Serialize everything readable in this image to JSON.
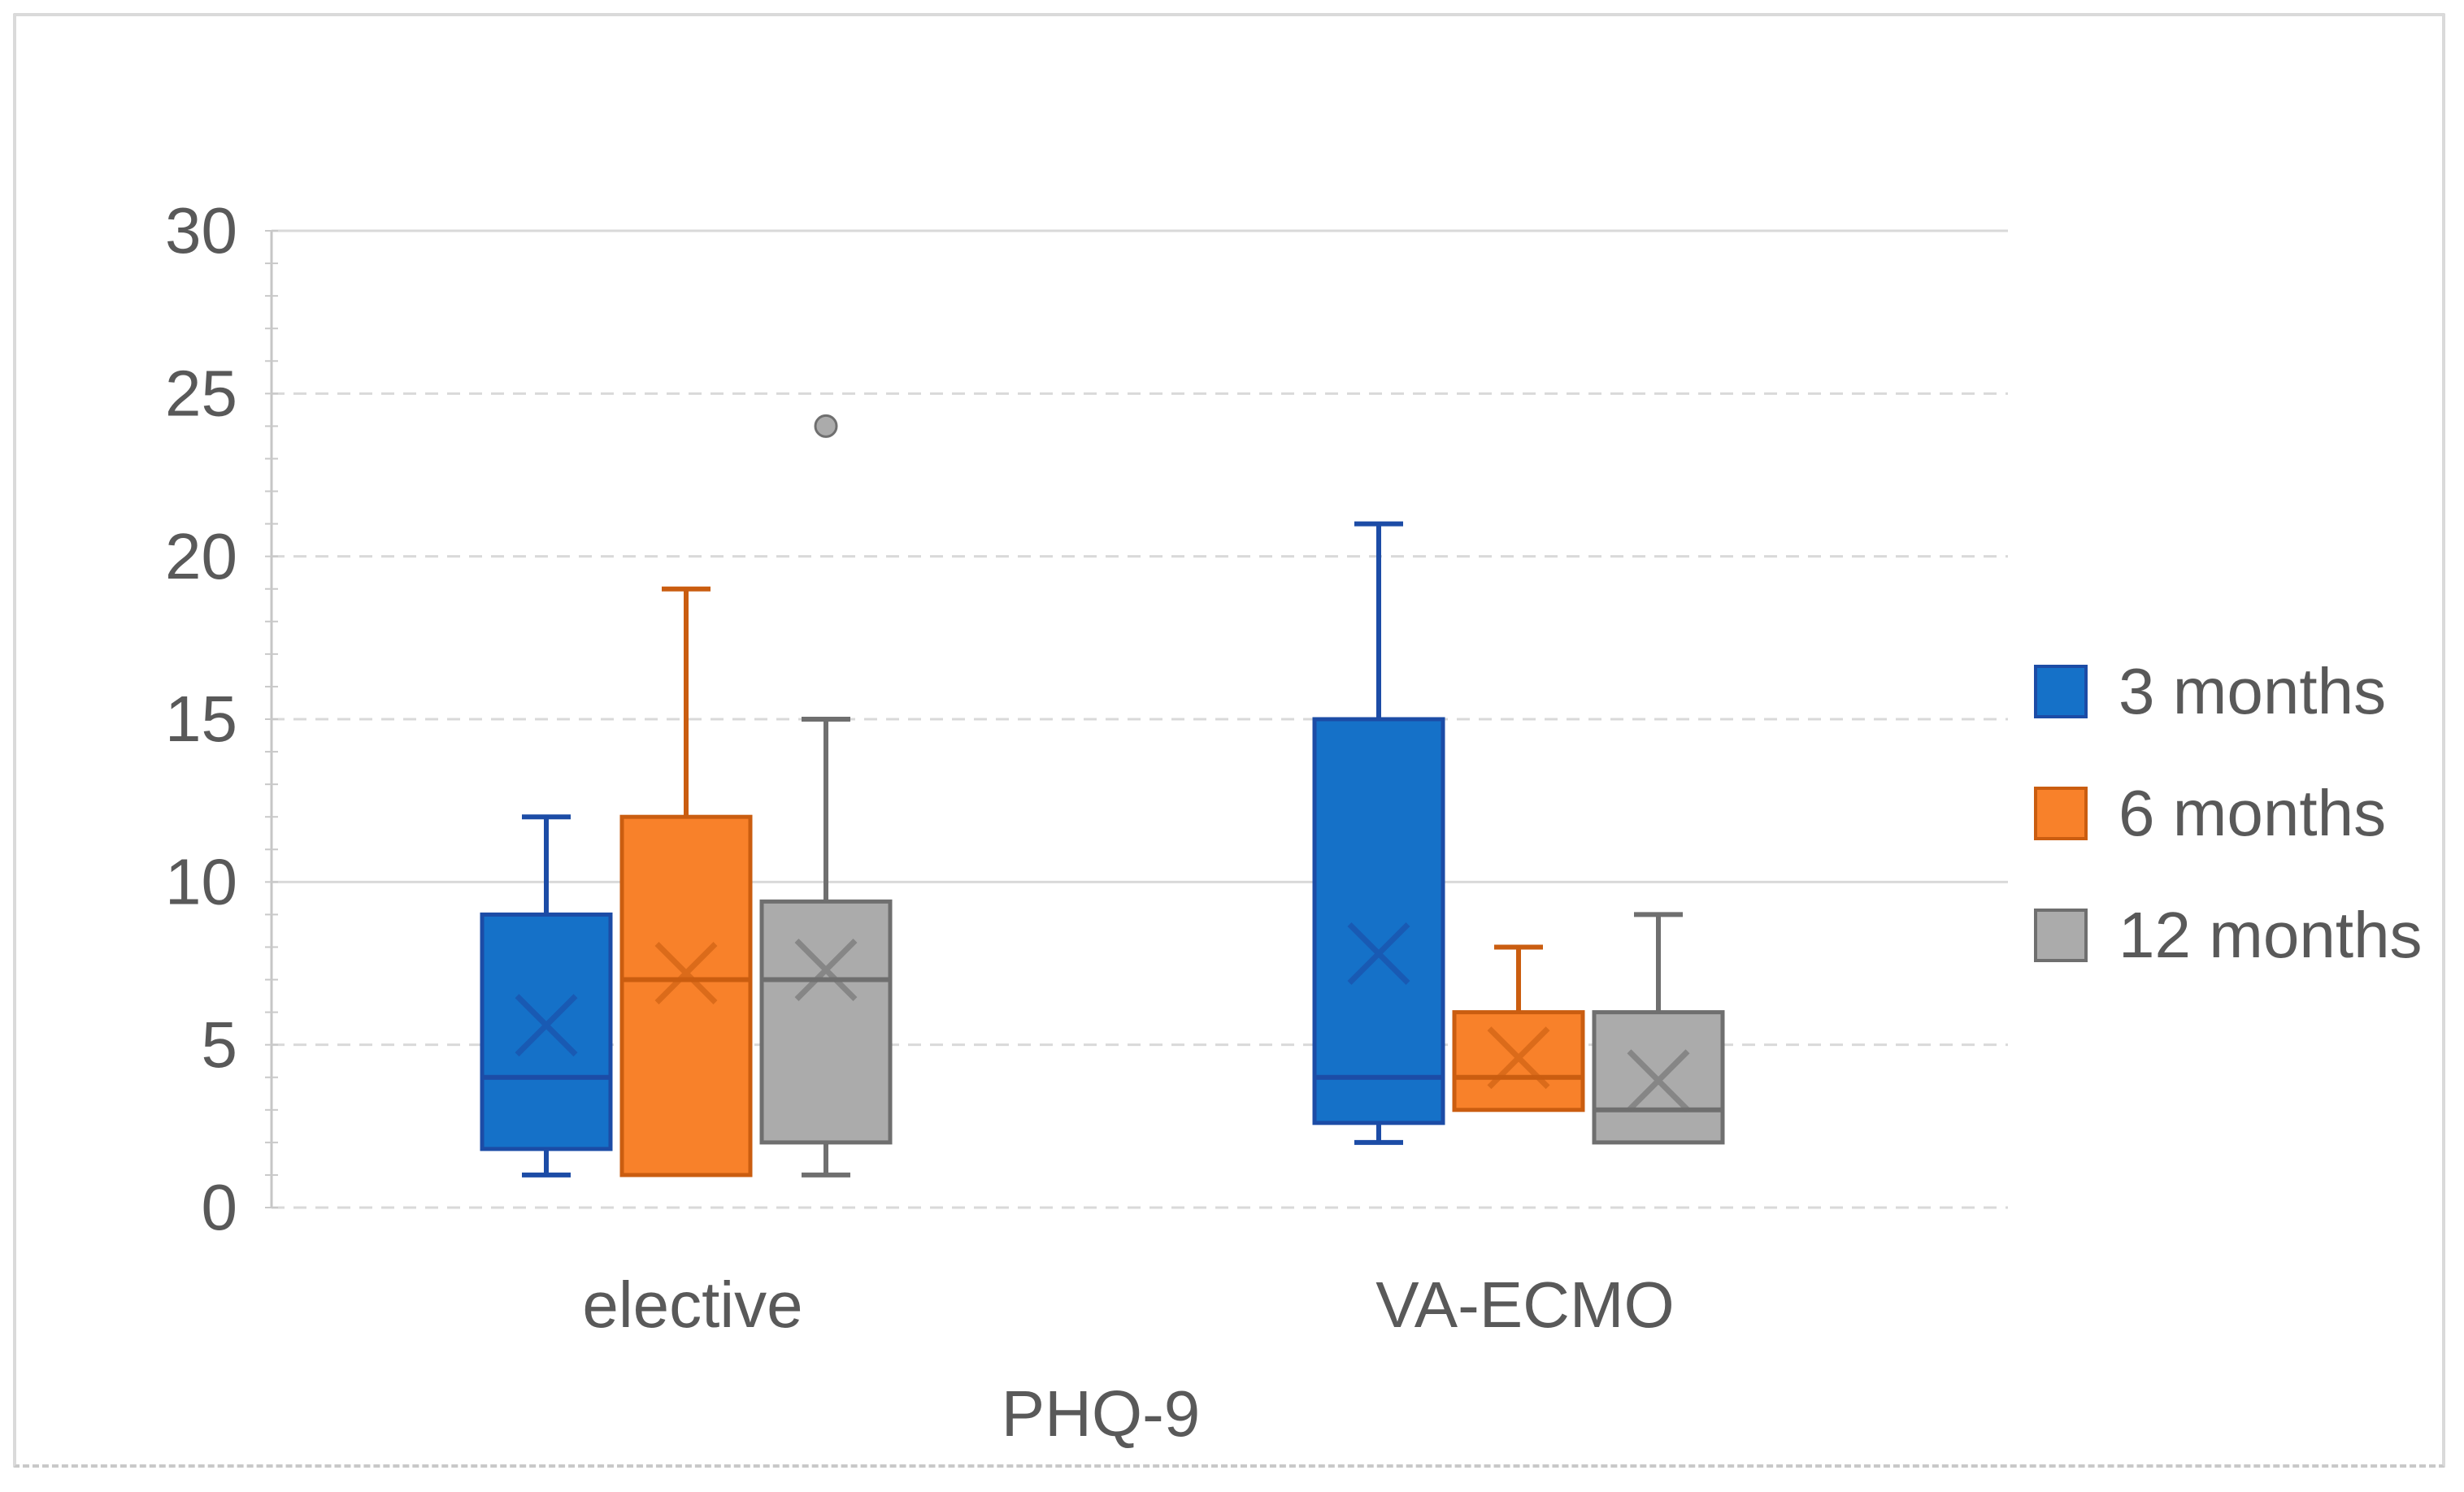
{
  "chart_data": {
    "type": "box",
    "title": "PHQ-9",
    "categories": [
      "elective",
      "VA-ECMO"
    ],
    "legend_position": "right",
    "grid": "dashed-horizontal",
    "y_axis": {
      "min": 0,
      "max": 30,
      "ticks": [
        30,
        25,
        20,
        15,
        10,
        5,
        0
      ]
    },
    "series": [
      {
        "name": "3 months",
        "color": "#1571C8",
        "line_color": "#1C4CA6",
        "boxes": [
          {
            "category": "elective",
            "min": 1,
            "q1": 1.8,
            "median": 4,
            "q3": 9,
            "max": 12,
            "mean": 5.6,
            "outliers": []
          },
          {
            "category": "VA-ECMO",
            "min": 2,
            "q1": 2.6,
            "median": 4,
            "q3": 15,
            "max": 21,
            "mean": 7.8,
            "outliers": []
          }
        ]
      },
      {
        "name": "6 months",
        "color": "#F8812A",
        "line_color": "#CA5D10",
        "boxes": [
          {
            "category": "elective",
            "min": 1,
            "q1": 1,
            "median": 7,
            "q3": 12,
            "max": 19,
            "mean": 7.2,
            "outliers": []
          },
          {
            "category": "VA-ECMO",
            "min": 3,
            "q1": 3,
            "median": 4,
            "q3": 6,
            "max": 8,
            "mean": 4.6,
            "outliers": []
          }
        ]
      },
      {
        "name": "12 months",
        "color": "#ABABAB",
        "line_color": "#6F6F6F",
        "boxes": [
          {
            "category": "elective",
            "min": 1,
            "q1": 2,
            "median": 7,
            "q3": 9.4,
            "max": 15,
            "mean": 7.3,
            "outliers": [
              24
            ]
          },
          {
            "category": "VA-ECMO",
            "min": 2,
            "q1": 2,
            "median": 3,
            "q3": 6,
            "max": 9,
            "mean": 3.9,
            "outliers": []
          }
        ]
      }
    ]
  },
  "text_colors": {
    "axis_text": "#595959"
  }
}
